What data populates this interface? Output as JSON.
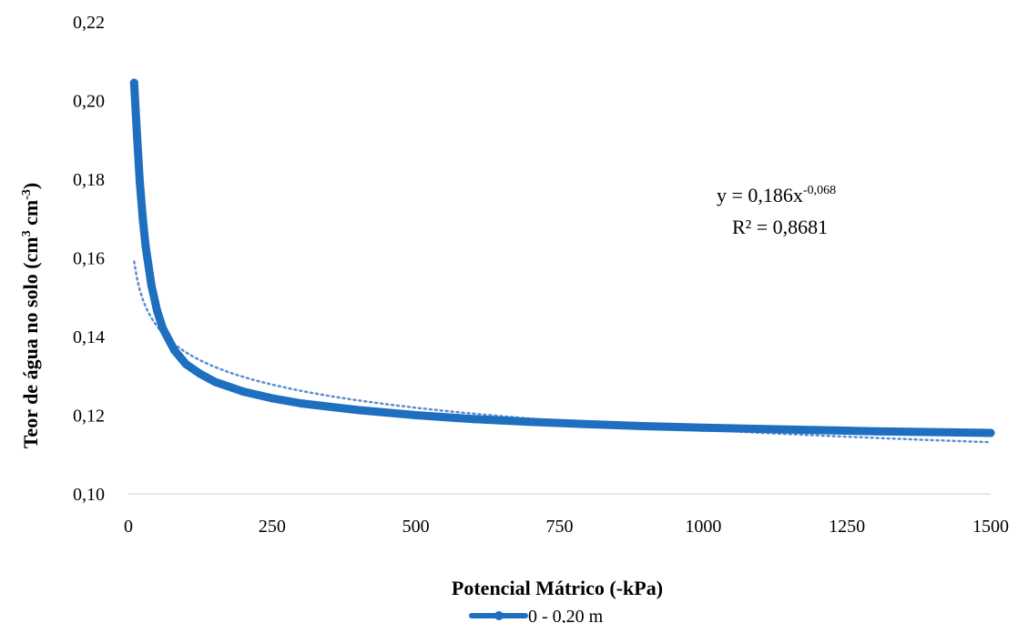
{
  "chart_data": {
    "type": "line",
    "xlabel": "Potencial Mátrico (-kPa)",
    "ylabel_parts": [
      "Teor de água no solo (cm",
      "3",
      " cm",
      "-3",
      ")"
    ],
    "xlim": [
      0,
      1500
    ],
    "ylim": [
      0.1,
      0.22
    ],
    "x_ticks": [
      0,
      250,
      500,
      750,
      1000,
      1250,
      1500
    ],
    "x_tick_labels": [
      "0",
      "250",
      "500",
      "750",
      "1000",
      "1250",
      "1500"
    ],
    "y_ticks": [
      0.1,
      0.12,
      0.14,
      0.16,
      0.18,
      0.2,
      0.22
    ],
    "y_tick_labels": [
      "0,10",
      "0,12",
      "0,14",
      "0,16",
      "0,18",
      "0,20",
      "0,22"
    ],
    "grid": false,
    "legend_position": "bottom",
    "series": [
      {
        "name": "0 - 0,20 m",
        "color": "#1f6fc0",
        "marker": "circle",
        "x": [
          10,
          12,
          15,
          20,
          25,
          30,
          40,
          50,
          60,
          80,
          100,
          125,
          150,
          200,
          250,
          300,
          400,
          500,
          600,
          700,
          800,
          900,
          1000,
          1100,
          1200,
          1300,
          1400,
          1500
        ],
        "y": [
          0.2045,
          0.199,
          0.191,
          0.179,
          0.17,
          0.163,
          0.153,
          0.1465,
          0.142,
          0.1365,
          0.133,
          0.1305,
          0.1285,
          0.126,
          0.1243,
          0.123,
          0.1213,
          0.12,
          0.119,
          0.1183,
          0.1177,
          0.1172,
          0.1168,
          0.1165,
          0.1162,
          0.1159,
          0.1157,
          0.1155
        ]
      }
    ],
    "trendline": {
      "type": "power",
      "coefficient": 0.186,
      "exponent": -0.068,
      "x_start": 10,
      "x_end": 1500,
      "color": "#5b8fd0",
      "style": "dotted",
      "equation_base": "y = 0,186x",
      "equation_exponent": "-0,068",
      "r_squared_text": "R² = 0,8681"
    }
  }
}
